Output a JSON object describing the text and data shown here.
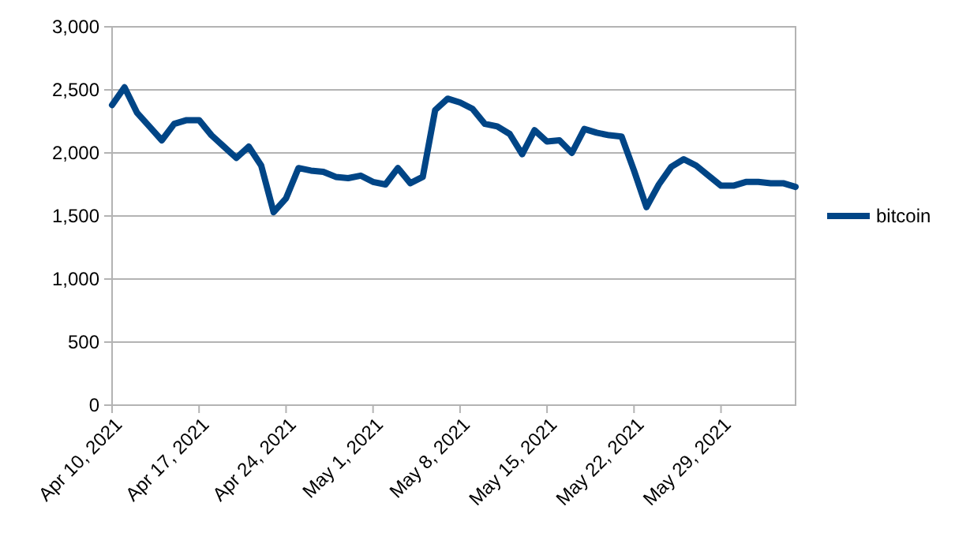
{
  "chart_data": {
    "type": "line",
    "x": [
      "2021-04-10",
      "2021-04-11",
      "2021-04-12",
      "2021-04-13",
      "2021-04-14",
      "2021-04-15",
      "2021-04-16",
      "2021-04-17",
      "2021-04-18",
      "2021-04-19",
      "2021-04-20",
      "2021-04-21",
      "2021-04-22",
      "2021-04-23",
      "2021-04-24",
      "2021-04-25",
      "2021-04-26",
      "2021-04-27",
      "2021-04-28",
      "2021-04-29",
      "2021-04-30",
      "2021-05-01",
      "2021-05-02",
      "2021-05-03",
      "2021-05-04",
      "2021-05-05",
      "2021-05-06",
      "2021-05-07",
      "2021-05-08",
      "2021-05-09",
      "2021-05-10",
      "2021-05-11",
      "2021-05-12",
      "2021-05-13",
      "2021-05-14",
      "2021-05-15",
      "2021-05-16",
      "2021-05-17",
      "2021-05-18",
      "2021-05-19",
      "2021-05-20",
      "2021-05-21",
      "2021-05-22",
      "2021-05-23",
      "2021-05-24",
      "2021-05-25",
      "2021-05-26",
      "2021-05-27",
      "2021-05-28",
      "2021-05-29",
      "2021-05-30",
      "2021-05-31",
      "2021-06-01",
      "2021-06-02",
      "2021-06-03",
      "2021-06-04"
    ],
    "series": [
      {
        "name": "bitcoin",
        "color": "#004586",
        "values": [
          2380,
          2520,
          2320,
          2210,
          2100,
          2230,
          2260,
          2260,
          2140,
          2050,
          1960,
          2050,
          1900,
          1530,
          1640,
          1880,
          1860,
          1850,
          1810,
          1800,
          1820,
          1770,
          1750,
          1880,
          1760,
          1810,
          2340,
          2430,
          2400,
          2350,
          2230,
          2210,
          2150,
          1990,
          2180,
          2090,
          2100,
          2000,
          2190,
          2160,
          2140,
          2130,
          1860,
          1570,
          1750,
          1890,
          1950,
          1900,
          1820,
          1740,
          1740,
          1770,
          1770,
          1760,
          1760,
          1730
        ]
      }
    ],
    "xlim": [
      "2021-04-10",
      "2021-06-04"
    ],
    "xticks": [
      {
        "value": "2021-04-10",
        "label": "Apr 10, 2021"
      },
      {
        "value": "2021-04-17",
        "label": "Apr 17, 2021"
      },
      {
        "value": "2021-04-24",
        "label": "Apr 24, 2021"
      },
      {
        "value": "2021-05-01",
        "label": "May 1, 2021"
      },
      {
        "value": "2021-05-08",
        "label": "May 8, 2021"
      },
      {
        "value": "2021-05-15",
        "label": "May 15, 2021"
      },
      {
        "value": "2021-05-22",
        "label": "May 22, 2021"
      },
      {
        "value": "2021-05-29",
        "label": "May 29, 2021"
      }
    ],
    "ylim": [
      0,
      3000
    ],
    "yticks": [
      {
        "value": 0,
        "label": "0"
      },
      {
        "value": 500,
        "label": "500"
      },
      {
        "value": 1000,
        "label": "1,000"
      },
      {
        "value": 1500,
        "label": "1,500"
      },
      {
        "value": 2000,
        "label": "2,000"
      },
      {
        "value": 2500,
        "label": "2,500"
      },
      {
        "value": 3000,
        "label": "3,000"
      }
    ],
    "grid": "y",
    "legend": "right",
    "marker": "none",
    "line_style": "solid"
  }
}
